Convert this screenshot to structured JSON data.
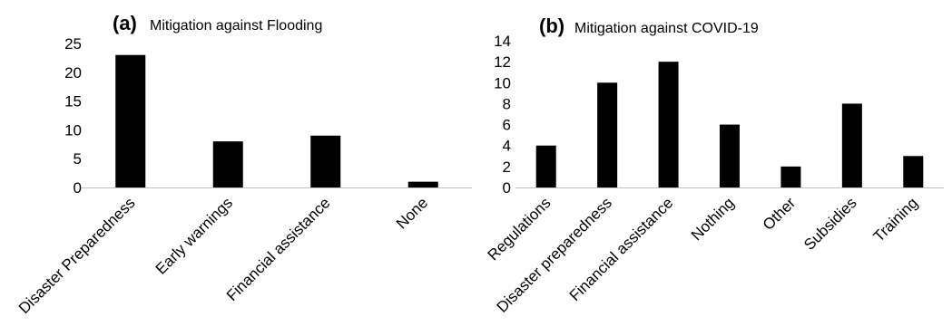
{
  "chart_data": [
    {
      "type": "bar",
      "panel": "(a)",
      "title": "Mitigation against Flooding",
      "categories": [
        "Disaster Preparedness",
        "Early warnings",
        "Financial assistance",
        "None"
      ],
      "values": [
        23,
        8,
        9,
        1
      ],
      "ylim": [
        0,
        25
      ],
      "yticks": [
        0,
        5,
        10,
        15,
        20,
        25
      ],
      "bar_color": "#000000",
      "grid": false,
      "legend": "none"
    },
    {
      "type": "bar",
      "panel": "(b)",
      "title": "Mitigation against COVID-19",
      "categories": [
        "Regulations",
        "Disaster preparedness",
        "Financial assistance",
        "Nothing",
        "Other",
        "Subsidies",
        "Training"
      ],
      "values": [
        4,
        10,
        12,
        6,
        2,
        8,
        3
      ],
      "ylim": [
        0,
        14
      ],
      "yticks": [
        0,
        2,
        4,
        6,
        8,
        10,
        12,
        14
      ],
      "bar_color": "#000000",
      "grid": false,
      "legend": "none"
    }
  ]
}
